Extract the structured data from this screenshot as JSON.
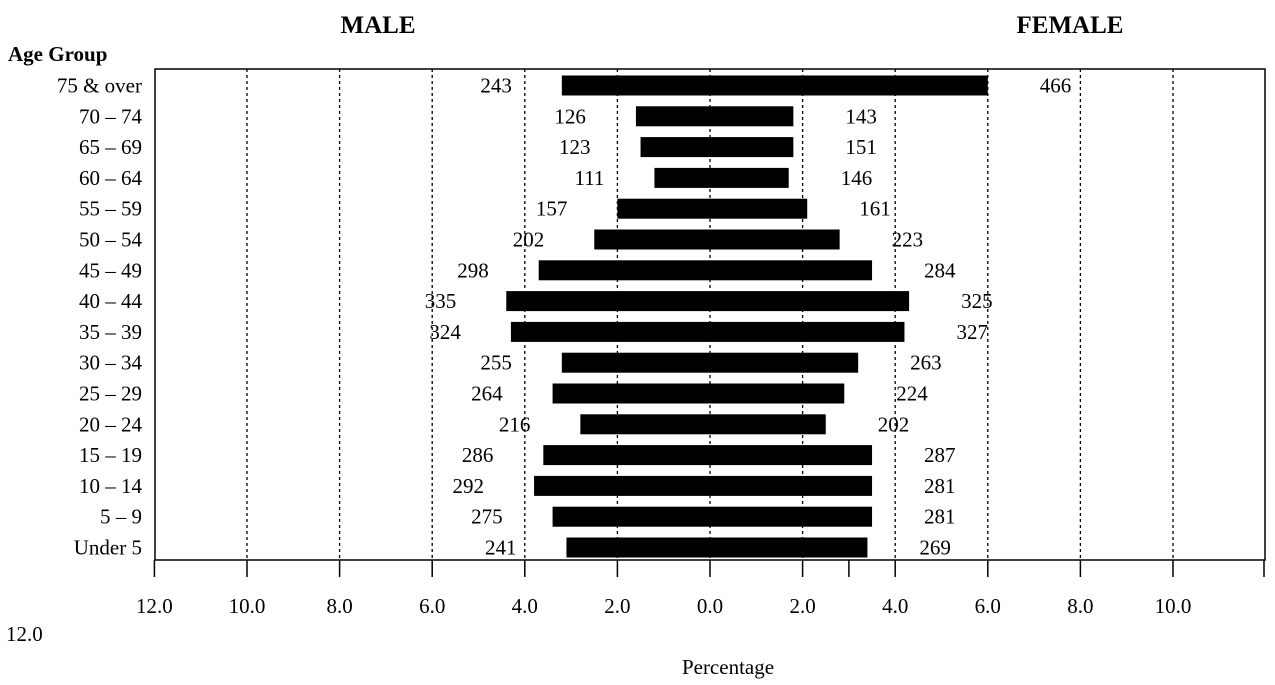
{
  "chart_data": {
    "type": "bar",
    "subtype": "population-pyramid",
    "left_header": "MALE",
    "right_header": "FEMALE",
    "category_axis_title": "Age Group",
    "xlabel": "Percentage",
    "categories": [
      "75 & over",
      "70 – 74",
      "65 – 69",
      "60 – 64",
      "55 – 59",
      "50 – 54",
      "45 – 49",
      "40 – 44",
      "35 – 39",
      "30 – 34",
      "25 – 29",
      "20 – 24",
      "15 – 19",
      "10 – 14",
      "5 – 9",
      "Under 5"
    ],
    "series": [
      {
        "name": "MALE",
        "side": "left",
        "values": [
          3.2,
          1.6,
          1.5,
          1.2,
          2.0,
          2.5,
          3.7,
          4.4,
          4.3,
          3.2,
          3.4,
          2.8,
          3.6,
          3.8,
          3.4,
          3.1
        ],
        "labels": [
          "243",
          "126",
          "123",
          "111",
          "157",
          "202",
          "298",
          "335",
          "324",
          "255",
          "264",
          "216",
          "286",
          "292",
          "275",
          "241"
        ]
      },
      {
        "name": "FEMALE",
        "side": "right",
        "values": [
          6.0,
          1.8,
          1.8,
          1.7,
          2.1,
          2.8,
          3.5,
          4.3,
          4.2,
          3.2,
          2.9,
          2.5,
          3.5,
          3.5,
          3.5,
          3.4
        ],
        "labels": [
          "466",
          "143",
          "151",
          "146",
          "161",
          "223",
          "284",
          "325",
          "327",
          "263",
          "224",
          "202",
          "287",
          "281",
          "281",
          "269"
        ]
      }
    ],
    "x_tick_labels": [
      "12.0",
      "10.0",
      "8.0",
      "6.0",
      "4.0",
      "2.0",
      "0.0",
      "2.0",
      "4.0",
      "6.0",
      "8.0",
      "10.0"
    ],
    "extra_tick_label": "12.0",
    "xlim": [
      -12,
      12
    ],
    "grid": true,
    "bar_color": "#000000"
  }
}
